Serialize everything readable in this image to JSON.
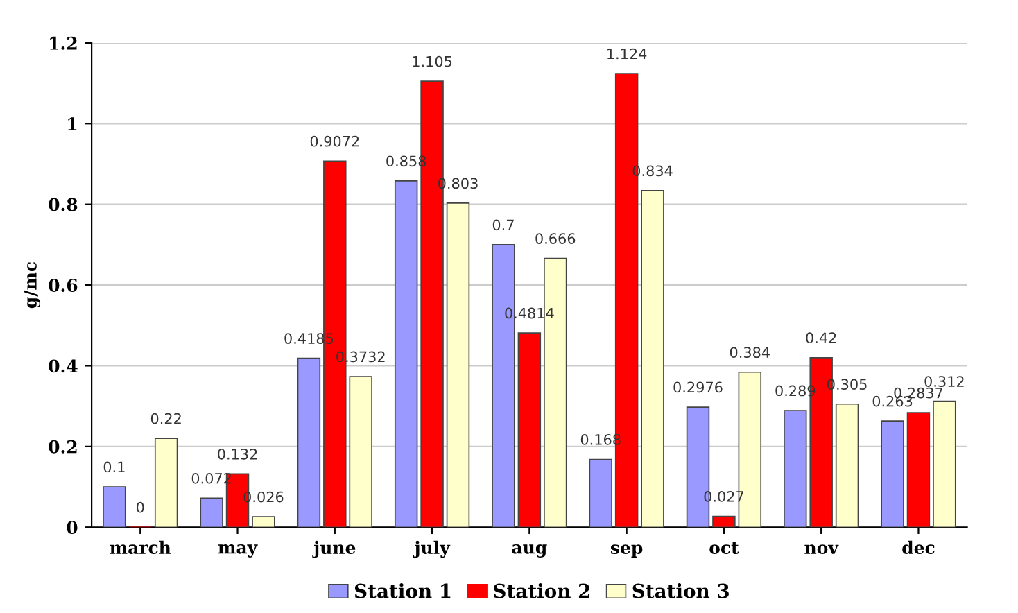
{
  "chart_data": {
    "type": "bar",
    "ylabel": "g/mc",
    "categories": [
      "march",
      "may",
      "june",
      "july",
      "aug",
      "sep",
      "oct",
      "nov",
      "dec"
    ],
    "series": [
      {
        "name": "Station 1",
        "color": "#9999ff",
        "values": [
          0.1,
          0.072,
          0.4185,
          0.858,
          0.7,
          0.168,
          0.2976,
          0.289,
          0.263
        ]
      },
      {
        "name": "Station 2",
        "color": "#ff0000",
        "values": [
          0,
          0.132,
          0.9072,
          1.105,
          0.4814,
          1.124,
          0.027,
          0.42,
          0.2837
        ]
      },
      {
        "name": "Station 3",
        "color": "#ffffcc",
        "values": [
          0.22,
          0.026,
          0.3732,
          0.803,
          0.666,
          0.834,
          0.384,
          0.305,
          0.312
        ]
      }
    ],
    "ylim": [
      0,
      1.2
    ],
    "yticks": [
      0,
      0.2,
      0.4,
      0.6,
      0.8,
      1,
      1.2
    ],
    "grid": "y",
    "legend": "bottom",
    "data_labels": true
  }
}
